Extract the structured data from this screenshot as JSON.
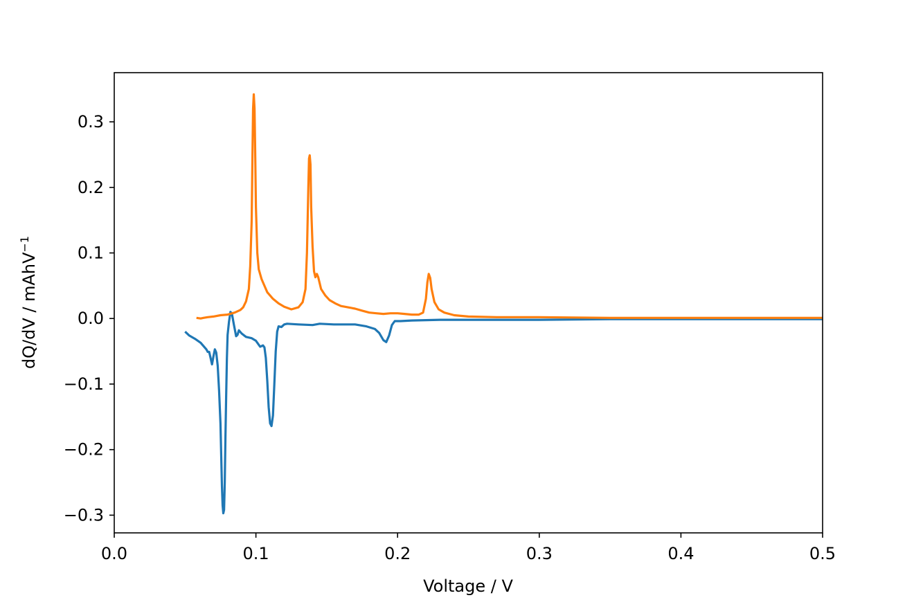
{
  "chart_data": {
    "type": "line",
    "xlabel": "Voltage / V",
    "ylabel": "dQ/dV / mAhV",
    "ylabel_superscript": "−1",
    "xlim": [
      0.0,
      0.5
    ],
    "ylim": [
      -0.327,
      0.375
    ],
    "grid": false,
    "x_ticks": [
      0.0,
      0.1,
      0.2,
      0.3,
      0.4,
      0.5
    ],
    "x_tick_labels": [
      "0.0",
      "0.1",
      "0.2",
      "0.3",
      "0.4",
      "0.5"
    ],
    "y_ticks": [
      -0.3,
      -0.2,
      -0.1,
      0.0,
      0.1,
      0.2,
      0.3
    ],
    "y_tick_labels": [
      "−0.3",
      "−0.2",
      "−0.1",
      "0.0",
      "0.1",
      "0.2",
      "0.3"
    ],
    "series": [
      {
        "color": "#1f77b4",
        "points": [
          [
            0.05,
            -0.02
          ],
          [
            0.053,
            -0.026
          ],
          [
            0.057,
            -0.031
          ],
          [
            0.061,
            -0.037
          ],
          [
            0.065,
            -0.047
          ],
          [
            0.066,
            -0.051
          ],
          [
            0.067,
            -0.051
          ],
          [
            0.068,
            -0.06
          ],
          [
            0.069,
            -0.07
          ],
          [
            0.07,
            -0.058
          ],
          [
            0.071,
            -0.047
          ],
          [
            0.072,
            -0.052
          ],
          [
            0.073,
            -0.072
          ],
          [
            0.074,
            -0.11
          ],
          [
            0.075,
            -0.16
          ],
          [
            0.0755,
            -0.21
          ],
          [
            0.076,
            -0.255
          ],
          [
            0.0765,
            -0.285
          ],
          [
            0.077,
            -0.297
          ],
          [
            0.0775,
            -0.292
          ],
          [
            0.078,
            -0.25
          ],
          [
            0.0785,
            -0.18
          ],
          [
            0.079,
            -0.12
          ],
          [
            0.0795,
            -0.06
          ],
          [
            0.08,
            -0.025
          ],
          [
            0.081,
            -0.005
          ],
          [
            0.082,
            0.01
          ],
          [
            0.083,
            0.008
          ],
          [
            0.0845,
            -0.01
          ],
          [
            0.086,
            -0.027
          ],
          [
            0.087,
            -0.025
          ],
          [
            0.088,
            -0.018
          ],
          [
            0.09,
            -0.023
          ],
          [
            0.093,
            -0.028
          ],
          [
            0.097,
            -0.03
          ],
          [
            0.1,
            -0.034
          ],
          [
            0.103,
            -0.043
          ],
          [
            0.105,
            -0.041
          ],
          [
            0.106,
            -0.044
          ],
          [
            0.107,
            -0.06
          ],
          [
            0.108,
            -0.095
          ],
          [
            0.109,
            -0.135
          ],
          [
            0.11,
            -0.16
          ],
          [
            0.111,
            -0.164
          ],
          [
            0.112,
            -0.148
          ],
          [
            0.113,
            -0.1
          ],
          [
            0.114,
            -0.05
          ],
          [
            0.115,
            -0.02
          ],
          [
            0.116,
            -0.012
          ],
          [
            0.118,
            -0.013
          ],
          [
            0.12,
            -0.009
          ],
          [
            0.122,
            -0.008
          ],
          [
            0.13,
            -0.009
          ],
          [
            0.14,
            -0.01
          ],
          [
            0.145,
            -0.008
          ],
          [
            0.155,
            -0.009
          ],
          [
            0.17,
            -0.009
          ],
          [
            0.178,
            -0.012
          ],
          [
            0.184,
            -0.016
          ],
          [
            0.187,
            -0.022
          ],
          [
            0.19,
            -0.033
          ],
          [
            0.192,
            -0.036
          ],
          [
            0.194,
            -0.026
          ],
          [
            0.196,
            -0.01
          ],
          [
            0.198,
            -0.004
          ],
          [
            0.202,
            -0.004
          ],
          [
            0.21,
            -0.003
          ],
          [
            0.23,
            -0.002
          ],
          [
            0.26,
            -0.002
          ],
          [
            0.3,
            -0.002
          ],
          [
            0.35,
            -0.001
          ],
          [
            0.4,
            -0.001
          ],
          [
            0.45,
            -0.001
          ],
          [
            0.5,
            -0.001
          ]
        ]
      },
      {
        "color": "#ff7f0e",
        "points": [
          [
            0.058,
            0.001
          ],
          [
            0.061,
            0.0
          ],
          [
            0.063,
            0.001
          ],
          [
            0.066,
            0.002
          ],
          [
            0.07,
            0.003
          ],
          [
            0.075,
            0.005
          ],
          [
            0.08,
            0.006
          ],
          [
            0.085,
            0.009
          ],
          [
            0.089,
            0.013
          ],
          [
            0.091,
            0.017
          ],
          [
            0.093,
            0.026
          ],
          [
            0.095,
            0.045
          ],
          [
            0.096,
            0.08
          ],
          [
            0.097,
            0.15
          ],
          [
            0.0975,
            0.24
          ],
          [
            0.098,
            0.32
          ],
          [
            0.0985,
            0.342
          ],
          [
            0.099,
            0.32
          ],
          [
            0.0995,
            0.25
          ],
          [
            0.1,
            0.17
          ],
          [
            0.101,
            0.1
          ],
          [
            0.102,
            0.075
          ],
          [
            0.104,
            0.06
          ],
          [
            0.106,
            0.05
          ],
          [
            0.108,
            0.04
          ],
          [
            0.112,
            0.03
          ],
          [
            0.116,
            0.023
          ],
          [
            0.12,
            0.018
          ],
          [
            0.125,
            0.014
          ],
          [
            0.13,
            0.017
          ],
          [
            0.133,
            0.025
          ],
          [
            0.135,
            0.045
          ],
          [
            0.136,
            0.1
          ],
          [
            0.137,
            0.2
          ],
          [
            0.1375,
            0.244
          ],
          [
            0.138,
            0.249
          ],
          [
            0.1385,
            0.235
          ],
          [
            0.139,
            0.17
          ],
          [
            0.14,
            0.11
          ],
          [
            0.141,
            0.072
          ],
          [
            0.142,
            0.063
          ],
          [
            0.143,
            0.068
          ],
          [
            0.144,
            0.063
          ],
          [
            0.146,
            0.045
          ],
          [
            0.149,
            0.035
          ],
          [
            0.152,
            0.028
          ],
          [
            0.156,
            0.023
          ],
          [
            0.16,
            0.019
          ],
          [
            0.165,
            0.017
          ],
          [
            0.17,
            0.015
          ],
          [
            0.175,
            0.012
          ],
          [
            0.18,
            0.009
          ],
          [
            0.185,
            0.008
          ],
          [
            0.19,
            0.007
          ],
          [
            0.195,
            0.008
          ],
          [
            0.2,
            0.008
          ],
          [
            0.205,
            0.007
          ],
          [
            0.21,
            0.006
          ],
          [
            0.215,
            0.006
          ],
          [
            0.218,
            0.009
          ],
          [
            0.22,
            0.03
          ],
          [
            0.221,
            0.055
          ],
          [
            0.222,
            0.068
          ],
          [
            0.223,
            0.062
          ],
          [
            0.224,
            0.045
          ],
          [
            0.226,
            0.025
          ],
          [
            0.229,
            0.014
          ],
          [
            0.233,
            0.009
          ],
          [
            0.24,
            0.005
          ],
          [
            0.25,
            0.003
          ],
          [
            0.27,
            0.002
          ],
          [
            0.3,
            0.002
          ],
          [
            0.35,
            0.001
          ],
          [
            0.4,
            0.001
          ],
          [
            0.45,
            0.001
          ],
          [
            0.5,
            0.001
          ]
        ]
      }
    ]
  }
}
